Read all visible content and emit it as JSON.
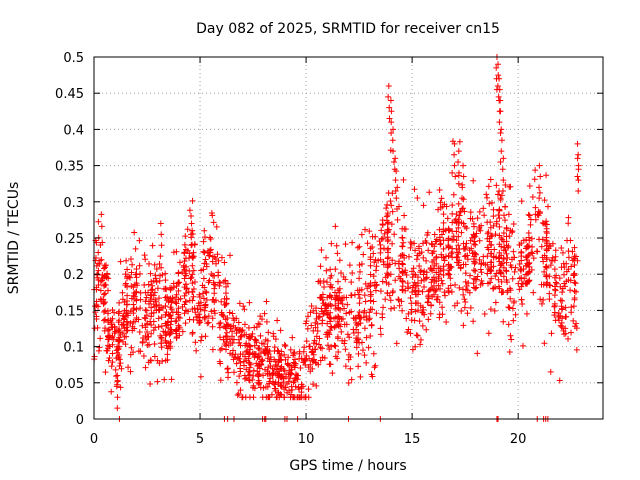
{
  "chart_data": {
    "type": "scatter",
    "title": "Day 082 of 2025, SRMTID for receiver cn15",
    "xlabel": "GPS time / hours",
    "ylabel": "SRMTID / TECUs",
    "xlim": [
      0,
      24
    ],
    "ylim": [
      0,
      0.5
    ],
    "xticks": [
      0,
      5,
      10,
      15,
      20
    ],
    "yticks": [
      0,
      0.05,
      0.1,
      0.15,
      0.2,
      0.25,
      0.3,
      0.35,
      0.4,
      0.45,
      0.5
    ],
    "xtick_labels": [
      "0",
      "5",
      "10",
      "15",
      "20"
    ],
    "ytick_labels": [
      "0",
      "0.05",
      "0.1",
      "0.15",
      "0.2",
      "0.25",
      "0.3",
      "0.35",
      "0.4",
      "0.45",
      "0.5"
    ],
    "grid": true,
    "marker": "+",
    "color": "#ff0000",
    "trend": [
      [
        0.0,
        0.15
      ],
      [
        0.3,
        0.2
      ],
      [
        0.7,
        0.12
      ],
      [
        1.0,
        0.1
      ],
      [
        1.5,
        0.15
      ],
      [
        2.0,
        0.17
      ],
      [
        2.5,
        0.14
      ],
      [
        3.0,
        0.16
      ],
      [
        3.5,
        0.13
      ],
      [
        4.0,
        0.16
      ],
      [
        4.5,
        0.19
      ],
      [
        5.0,
        0.16
      ],
      [
        5.5,
        0.2
      ],
      [
        6.0,
        0.14
      ],
      [
        6.5,
        0.12
      ],
      [
        7.0,
        0.09
      ],
      [
        7.5,
        0.08
      ],
      [
        8.0,
        0.08
      ],
      [
        8.5,
        0.07
      ],
      [
        9.0,
        0.06
      ],
      [
        9.5,
        0.06
      ],
      [
        10.0,
        0.07
      ],
      [
        10.5,
        0.12
      ],
      [
        11.0,
        0.15
      ],
      [
        11.5,
        0.16
      ],
      [
        12.0,
        0.14
      ],
      [
        12.5,
        0.15
      ],
      [
        13.0,
        0.18
      ],
      [
        13.5,
        0.2
      ],
      [
        14.0,
        0.24
      ],
      [
        14.5,
        0.21
      ],
      [
        15.0,
        0.19
      ],
      [
        15.5,
        0.19
      ],
      [
        16.0,
        0.2
      ],
      [
        16.5,
        0.23
      ],
      [
        17.0,
        0.26
      ],
      [
        17.5,
        0.22
      ],
      [
        18.0,
        0.21
      ],
      [
        18.5,
        0.23
      ],
      [
        19.0,
        0.24
      ],
      [
        19.5,
        0.22
      ],
      [
        20.0,
        0.21
      ],
      [
        20.5,
        0.22
      ],
      [
        21.0,
        0.25
      ],
      [
        21.5,
        0.2
      ],
      [
        22.0,
        0.15
      ],
      [
        22.5,
        0.2
      ],
      [
        22.8,
        0.19
      ]
    ],
    "spikes": [
      [
        13.9,
        0.46
      ],
      [
        14.0,
        0.44
      ],
      [
        14.1,
        0.4
      ],
      [
        14.2,
        0.36
      ],
      [
        14.3,
        0.32
      ],
      [
        17.0,
        0.38
      ],
      [
        17.2,
        0.37
      ],
      [
        17.4,
        0.35
      ],
      [
        19.0,
        0.5
      ],
      [
        19.05,
        0.49
      ],
      [
        19.1,
        0.47
      ],
      [
        19.15,
        0.44
      ],
      [
        19.2,
        0.4
      ],
      [
        19.3,
        0.36
      ],
      [
        21.0,
        0.35
      ],
      [
        22.8,
        0.38
      ],
      [
        22.8,
        0.36
      ],
      [
        3.15,
        0.27
      ],
      [
        4.6,
        0.27
      ],
      [
        5.2,
        0.26
      ],
      [
        0.2,
        0.23
      ],
      [
        1.1,
        0.06
      ]
    ],
    "zero_points": [
      1.2,
      6.15,
      6.3,
      6.6,
      7.95,
      8.05,
      8.1,
      9.0,
      9.1,
      9.6,
      12.0,
      13.5,
      19.0,
      19.05,
      20.9,
      21.2,
      21.3,
      21.4
    ]
  }
}
